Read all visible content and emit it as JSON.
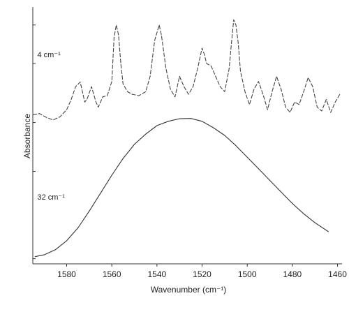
{
  "chart_data": {
    "type": "line",
    "xlabel": "Wavenumber (cm⁻¹)",
    "ylabel": "Absorbance",
    "xlim": [
      1595,
      1458
    ],
    "x_reversed": true,
    "xticks": [
      1580,
      1560,
      1540,
      1520,
      1500,
      1480,
      1460
    ],
    "ylim": [
      0,
      10
    ],
    "yticks": [
      0.2,
      3.6,
      5.5,
      7.8,
      9.3
    ],
    "y_tick_labels_shown": false,
    "grid": false,
    "series": [
      {
        "name": "4 cm⁻¹",
        "style": "dashed",
        "color": "#444444",
        "points": [
          [
            1595,
            5.8
          ],
          [
            1592,
            5.85
          ],
          [
            1589,
            5.7
          ],
          [
            1586,
            5.6
          ],
          [
            1583,
            5.72
          ],
          [
            1580,
            6.0
          ],
          [
            1578,
            6.4
          ],
          [
            1576,
            6.9
          ],
          [
            1574,
            7.08
          ],
          [
            1573,
            6.7
          ],
          [
            1572,
            6.3
          ],
          [
            1571,
            6.4
          ],
          [
            1569,
            6.9
          ],
          [
            1567,
            6.3
          ],
          [
            1566,
            6.1
          ],
          [
            1564,
            6.5
          ],
          [
            1562,
            6.55
          ],
          [
            1560,
            7.1
          ],
          [
            1559,
            8.8
          ],
          [
            1558,
            9.3
          ],
          [
            1557,
            8.9
          ],
          [
            1556,
            7.8
          ],
          [
            1555,
            7.0
          ],
          [
            1553,
            6.7
          ],
          [
            1551,
            6.6
          ],
          [
            1548,
            6.55
          ],
          [
            1545,
            6.7
          ],
          [
            1543,
            7.3
          ],
          [
            1541,
            8.7
          ],
          [
            1539,
            9.3
          ],
          [
            1538,
            8.9
          ],
          [
            1536,
            7.6
          ],
          [
            1534,
            6.8
          ],
          [
            1532,
            6.5
          ],
          [
            1530,
            7.3
          ],
          [
            1528,
            6.9
          ],
          [
            1526,
            6.6
          ],
          [
            1524,
            6.9
          ],
          [
            1522,
            7.6
          ],
          [
            1520,
            8.4
          ],
          [
            1519,
            8.15
          ],
          [
            1518,
            7.8
          ],
          [
            1516,
            7.7
          ],
          [
            1514,
            7.3
          ],
          [
            1512,
            6.9
          ],
          [
            1510,
            6.7
          ],
          [
            1508,
            7.6
          ],
          [
            1507,
            8.6
          ],
          [
            1506,
            9.5
          ],
          [
            1505,
            9.3
          ],
          [
            1504,
            8.6
          ],
          [
            1503,
            7.5
          ],
          [
            1501,
            6.7
          ],
          [
            1499,
            6.2
          ],
          [
            1497,
            6.8
          ],
          [
            1495,
            7.1
          ],
          [
            1493,
            6.6
          ],
          [
            1491,
            6.0
          ],
          [
            1489,
            6.7
          ],
          [
            1487,
            7.3
          ],
          [
            1485,
            6.8
          ],
          [
            1483,
            6.1
          ],
          [
            1481,
            5.9
          ],
          [
            1479,
            6.3
          ],
          [
            1477,
            6.2
          ],
          [
            1475,
            6.7
          ],
          [
            1473,
            7.25
          ],
          [
            1471,
            6.9
          ],
          [
            1469,
            6.1
          ],
          [
            1467,
            5.95
          ],
          [
            1465,
            6.4
          ],
          [
            1463,
            5.9
          ],
          [
            1461,
            6.3
          ],
          [
            1459,
            6.6
          ]
        ]
      },
      {
        "name": "32 cm⁻¹",
        "style": "solid",
        "color": "#333333",
        "points": [
          [
            1594,
            0.28
          ],
          [
            1590,
            0.35
          ],
          [
            1585,
            0.55
          ],
          [
            1580,
            0.9
          ],
          [
            1575,
            1.4
          ],
          [
            1570,
            2.05
          ],
          [
            1565,
            2.75
          ],
          [
            1560,
            3.45
          ],
          [
            1555,
            4.1
          ],
          [
            1550,
            4.65
          ],
          [
            1545,
            5.05
          ],
          [
            1540,
            5.38
          ],
          [
            1535,
            5.55
          ],
          [
            1530,
            5.65
          ],
          [
            1525,
            5.66
          ],
          [
            1520,
            5.55
          ],
          [
            1515,
            5.3
          ],
          [
            1510,
            5.0
          ],
          [
            1505,
            4.6
          ],
          [
            1500,
            4.15
          ],
          [
            1495,
            3.7
          ],
          [
            1490,
            3.25
          ],
          [
            1485,
            2.8
          ],
          [
            1480,
            2.35
          ],
          [
            1475,
            1.95
          ],
          [
            1470,
            1.6
          ],
          [
            1464,
            1.25
          ]
        ]
      }
    ],
    "annotations": [
      {
        "text": "4 cm⁻¹",
        "x": 1593,
        "y": 8.05
      },
      {
        "text": "32 cm⁻¹",
        "x": 1593,
        "y": 2.5
      }
    ]
  }
}
